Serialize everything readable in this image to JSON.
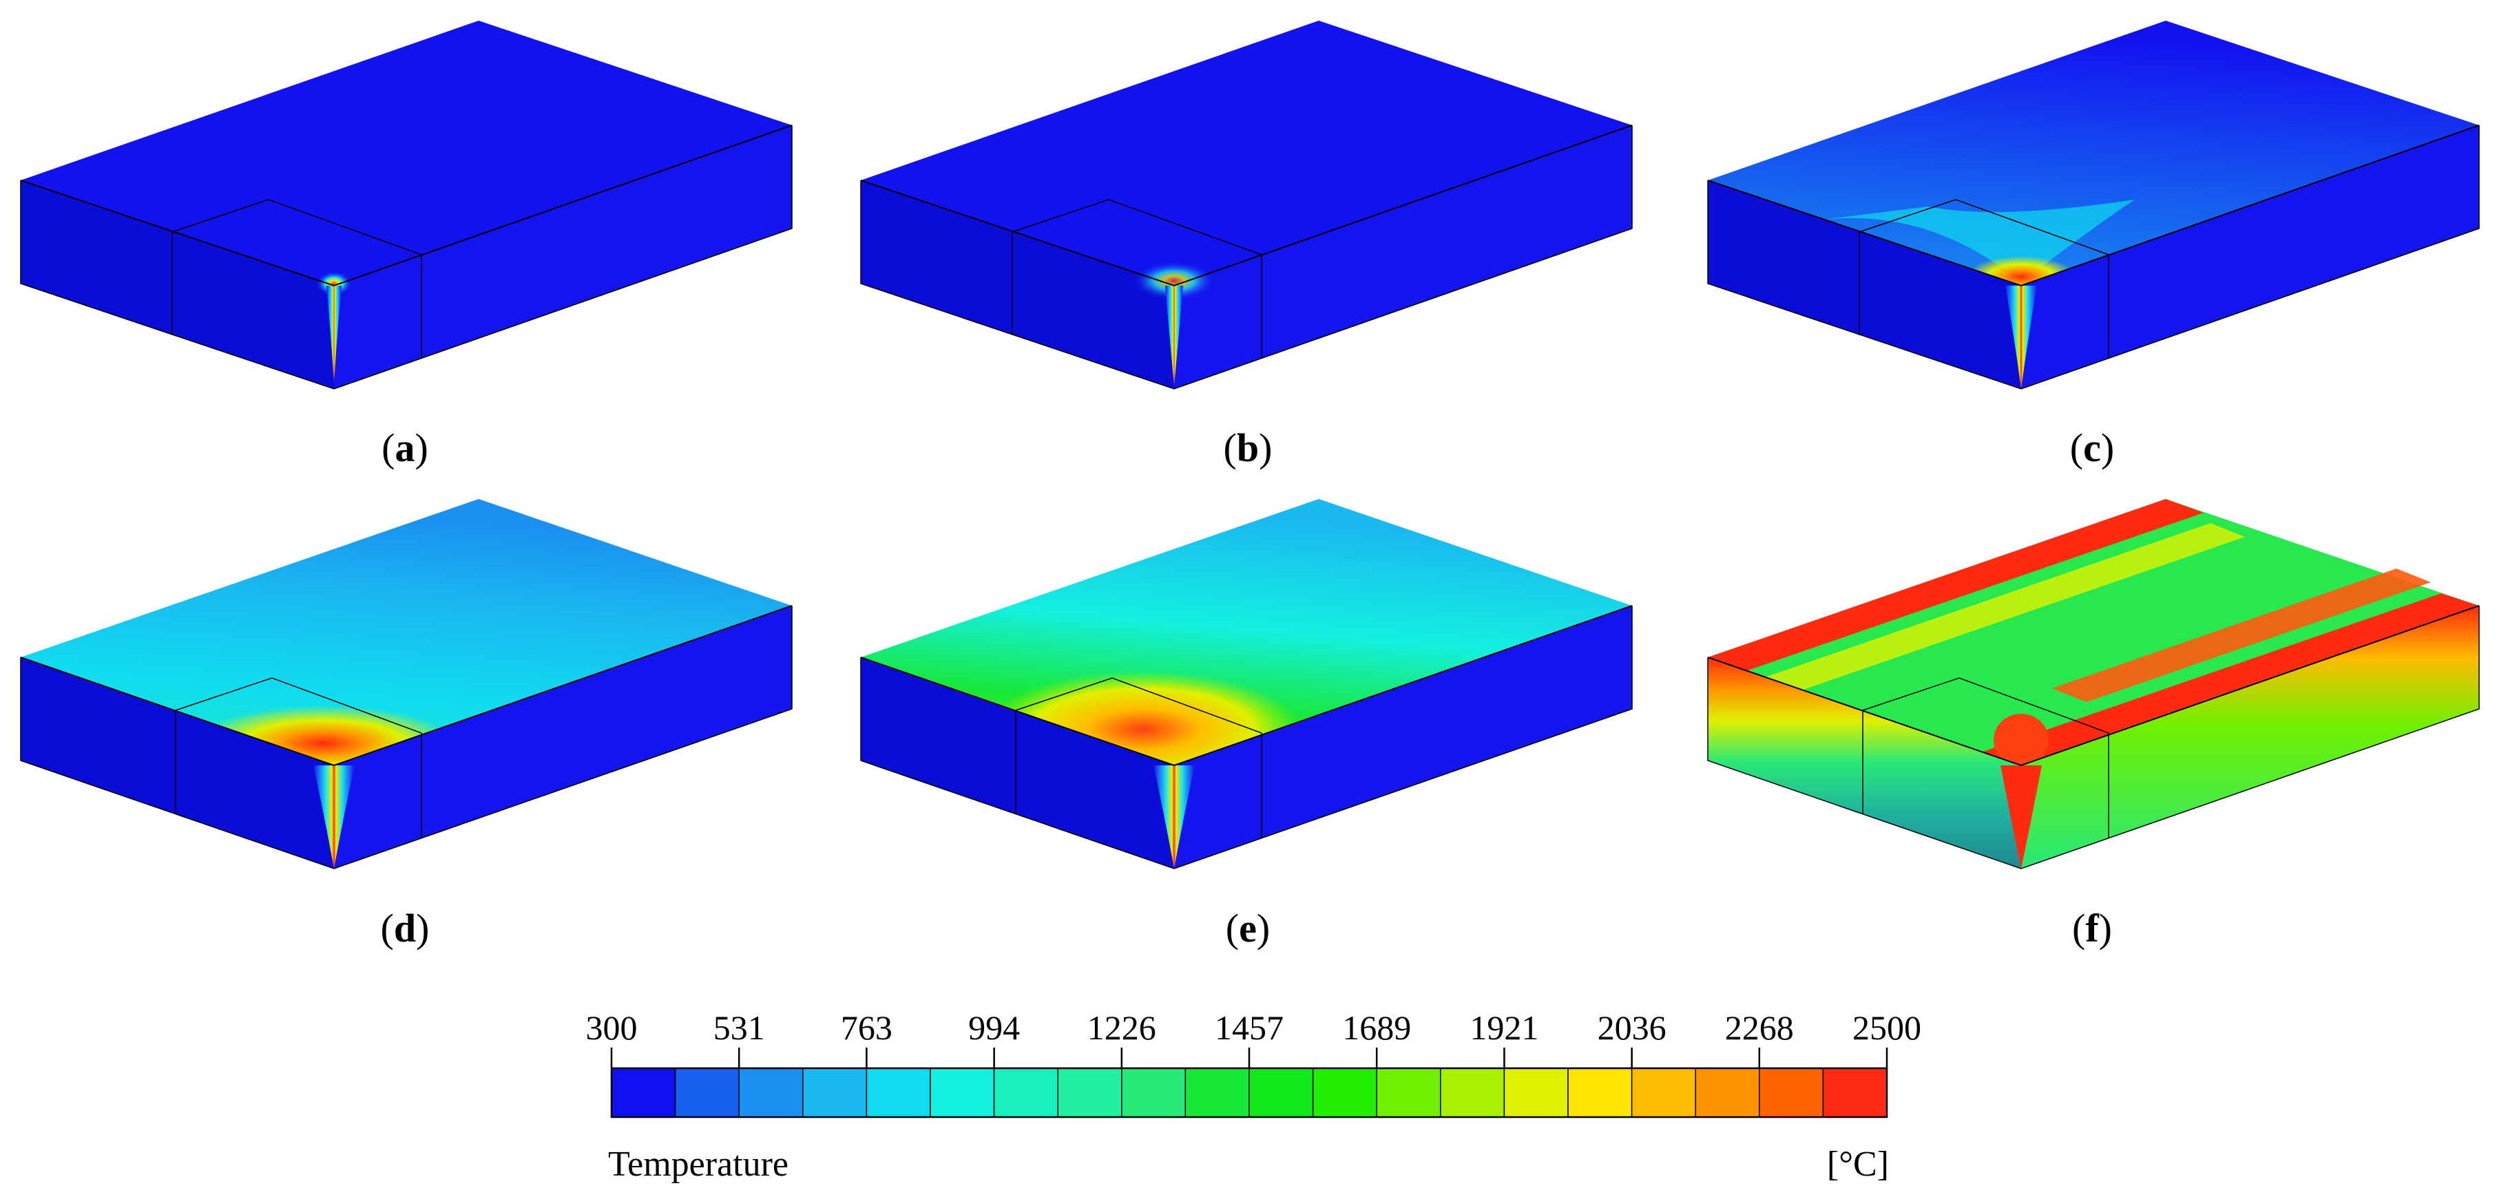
{
  "panels": [
    {
      "id": "a",
      "label": "a"
    },
    {
      "id": "b",
      "label": "b"
    },
    {
      "id": "c",
      "label": "c"
    },
    {
      "id": "d",
      "label": "d"
    },
    {
      "id": "e",
      "label": "e"
    },
    {
      "id": "f",
      "label": "f"
    }
  ],
  "colorbar": {
    "title": "Temperature",
    "unit": "[°C]",
    "ticks": [
      "300",
      "531",
      "763",
      "994",
      "1226",
      "1457",
      "1689",
      "1921",
      "2036",
      "2268",
      "2500"
    ],
    "colors": [
      "#1010f0",
      "#1660f0",
      "#1a90f0",
      "#1ab8f0",
      "#10dcf0",
      "#14f0e0",
      "#18f0c0",
      "#20f0a0",
      "#28e878",
      "#18e838",
      "#10e818",
      "#20f000",
      "#70f000",
      "#a8f000",
      "#e0f000",
      "#ffe400",
      "#ffbc00",
      "#ff9400",
      "#ff6400",
      "#ff2a14"
    ]
  },
  "colors": {
    "cold": "#1212f0",
    "hot": "#ff2810"
  }
}
